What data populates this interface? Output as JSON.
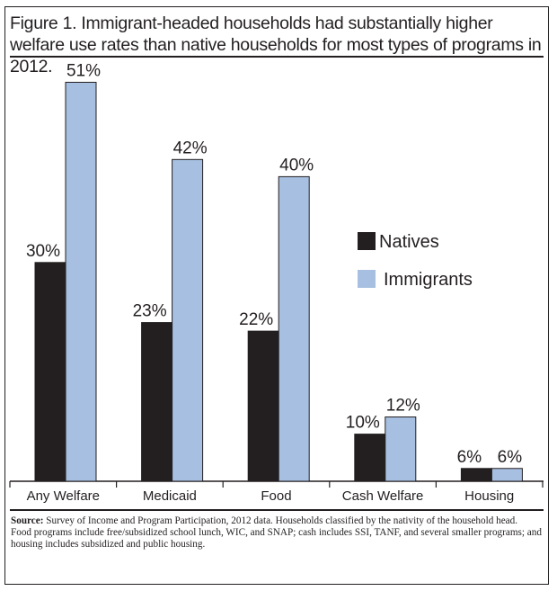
{
  "chart_data": {
    "type": "bar",
    "title": "Figure 1. Immigrant-headed households had substantially higher welfare use rates than native households for most types of programs in 2012.",
    "categories": [
      "Any Welfare",
      "Medicaid",
      "Food",
      "Cash Welfare",
      "Housing"
    ],
    "series": [
      {
        "name": "Natives",
        "values": [
          30,
          23,
          22,
          10,
          6
        ],
        "labels": [
          "30%",
          "23%",
          "22%",
          "10%",
          "6%"
        ],
        "color": "#231f20"
      },
      {
        "name": "Immigrants",
        "values": [
          51,
          42,
          40,
          12,
          6
        ],
        "labels": [
          "51%",
          "42%",
          "40%",
          "12%",
          "6%"
        ],
        "color": "#a7bfe0"
      }
    ],
    "legend_placement": "right",
    "grid": false,
    "xlabel": "",
    "ylabel": ""
  },
  "notes": {
    "source_label": "Source:",
    "source_text": " Survey of Income and Program Participation, 2012 data. Households classified by the nativity of the household head.",
    "detail": "Food programs include free/subsidized school lunch, WIC, and SNAP; cash includes SSI, TANF, and several smaller programs; and housing includes subsidized and public housing."
  }
}
